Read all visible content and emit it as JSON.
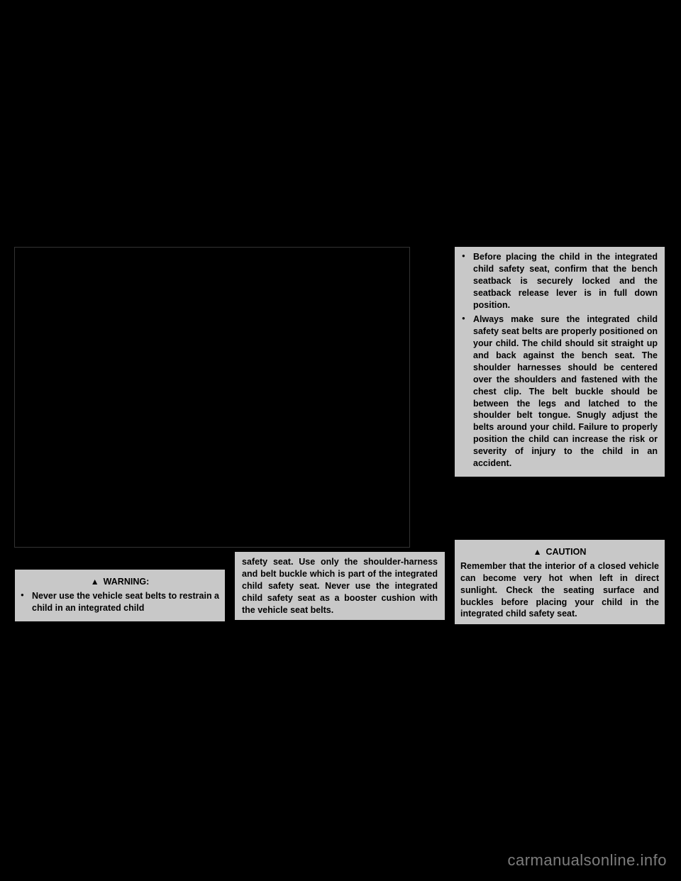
{
  "warning_header": "WARNING:",
  "caution_header": "CAUTION",
  "warning_box1_items": [
    "Never use the vehicle seat belts to restrain a child in an integrated child"
  ],
  "warning_box2_text": "safety seat. Use only the shoulder-harness and belt buckle which is part of the integrated child safety seat. Never use the integrated child safety seat as a booster cushion with the vehicle seat belts.",
  "warning_box3_items": [
    "Before placing the child in the integrated child safety seat, confirm that the bench seatback is securely locked and the seatback release lever is in full down position.",
    "Always make sure the integrated child safety seat belts are properly positioned on your child. The child should sit straight up and back against the bench seat. The shoulder harnesses should be centered over the shoulders and fastened with the chest clip. The belt buckle should be between the legs and latched to the shoulder belt tongue. Snugly adjust the belts around your child. Failure to properly position the child can increase the risk or severity of injury to the child in an accident."
  ],
  "caution_text": "Remember that the interior of a closed vehicle can become very hot when left in direct sunlight. Check the seating surface and buckles before placing your child in the integrated child safety seat.",
  "watermark": "carmanualsonline.info"
}
